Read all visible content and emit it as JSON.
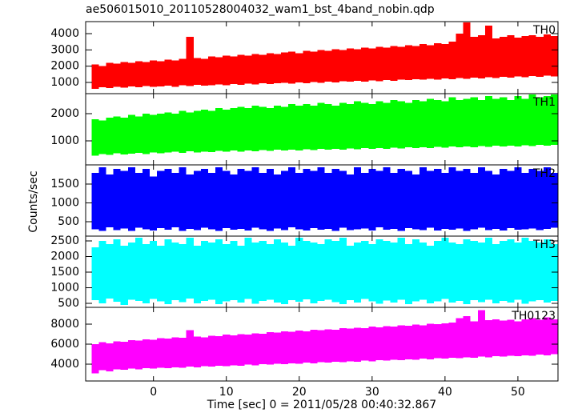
{
  "chart_data": {
    "type": "stacked-range",
    "title": "ae506015010_20110528004032_wam1_bst_4band_nobin.qdp",
    "xlabel": "Time [sec] 0 = 2011/05/28 00:40:32.867",
    "ylabel": "Counts/sec",
    "xlim": [
      -9.3,
      55.5
    ],
    "xticks": [
      0,
      10,
      20,
      30,
      40,
      50
    ],
    "x": [
      -8,
      -7,
      -6,
      -5,
      -4,
      -3,
      -2,
      -1,
      0,
      1,
      2,
      3,
      4,
      5,
      6,
      7,
      8,
      9,
      10,
      11,
      12,
      13,
      14,
      15,
      16,
      17,
      18,
      19,
      20,
      21,
      22,
      23,
      24,
      25,
      26,
      27,
      28,
      29,
      30,
      31,
      32,
      33,
      34,
      35,
      36,
      37,
      38,
      39,
      40,
      41,
      42,
      43,
      44,
      45,
      46,
      47,
      48,
      49,
      50,
      51,
      52,
      53,
      54,
      55
    ],
    "panels": [
      {
        "label": "TH0",
        "color": "#ff0000",
        "ylim": [
          310,
          4740
        ],
        "yticks": [
          1000,
          2000,
          3000,
          4000
        ],
        "low": [
          600,
          700,
          650,
          720,
          680,
          750,
          700,
          780,
          720,
          760,
          800,
          740,
          820,
          780,
          850,
          800,
          830,
          880,
          820,
          900,
          860,
          920,
          880,
          950,
          900,
          940,
          980,
          920,
          1000,
          960,
          1020,
          980,
          1050,
          1000,
          1080,
          1040,
          1100,
          1060,
          1120,
          1080,
          1150,
          1100,
          1180,
          1140,
          1200,
          1160,
          1220,
          1180,
          1250,
          1200,
          1280,
          1230,
          1300,
          1250,
          1320,
          1280,
          1350,
          1300,
          1380,
          1320,
          1400,
          1350,
          1420,
          1380
        ],
        "high": [
          2100,
          2000,
          2200,
          2150,
          2250,
          2200,
          2300,
          2250,
          2350,
          2300,
          2400,
          2350,
          2450,
          3800,
          2500,
          2450,
          2600,
          2550,
          2650,
          2600,
          2700,
          2650,
          2750,
          2700,
          2800,
          2750,
          2850,
          2900,
          2800,
          2950,
          2900,
          3000,
          2950,
          3050,
          3000,
          3100,
          3050,
          3150,
          3100,
          3200,
          3150,
          3250,
          3200,
          3300,
          3250,
          3350,
          3300,
          3400,
          3350,
          3500,
          4000,
          4700,
          3800,
          3900,
          4500,
          3700,
          3800,
          3900,
          3750,
          3850,
          3900,
          3800,
          3950,
          3850
        ]
      },
      {
        "label": "TH1",
        "color": "#00ff00",
        "ylim": [
          118,
          2735
        ],
        "yticks": [
          1000,
          2000
        ],
        "low": [
          450,
          520,
          480,
          550,
          500,
          530,
          560,
          520,
          580,
          540,
          570,
          600,
          560,
          620,
          580,
          610,
          590,
          630,
          600,
          640,
          610,
          650,
          620,
          660,
          630,
          670,
          640,
          680,
          650,
          690,
          660,
          700,
          670,
          710,
          680,
          720,
          690,
          730,
          700,
          740,
          710,
          750,
          720,
          760,
          730,
          770,
          740,
          780,
          750,
          790,
          760,
          800,
          770,
          810,
          780,
          820,
          790,
          830,
          800,
          840,
          810,
          850,
          820,
          860
        ],
        "high": [
          1800,
          1750,
          1850,
          1900,
          1850,
          1950,
          1900,
          2000,
          1950,
          2000,
          2050,
          2000,
          2100,
          2050,
          2100,
          2150,
          2100,
          2200,
          2150,
          2200,
          2250,
          2200,
          2300,
          2250,
          2200,
          2300,
          2250,
          2350,
          2300,
          2350,
          2300,
          2400,
          2350,
          2300,
          2400,
          2350,
          2450,
          2400,
          2350,
          2450,
          2400,
          2500,
          2450,
          2400,
          2500,
          2450,
          2550,
          2500,
          2450,
          2600,
          2500,
          2550,
          2600,
          2500,
          2650,
          2550,
          2600,
          2500,
          2650,
          2550,
          2700,
          2600,
          2650,
          2700
        ]
      },
      {
        "label": "TH2",
        "color": "#0000ff",
        "ylim": [
          117,
          2010
        ],
        "yticks": [
          500,
          1000,
          1500
        ],
        "low": [
          300,
          250,
          350,
          280,
          320,
          260,
          340,
          300,
          270,
          330,
          290,
          350,
          260,
          310,
          280,
          340,
          300,
          250,
          330,
          290,
          310,
          270,
          340,
          300,
          260,
          320,
          280,
          350,
          300,
          270,
          330,
          290,
          310,
          260,
          340,
          280,
          300,
          320,
          270,
          350,
          290,
          310,
          260,
          330,
          300,
          280,
          340,
          270,
          310,
          290,
          320,
          260,
          300,
          340,
          280,
          310,
          270,
          330,
          290,
          300,
          320,
          280,
          310,
          340
        ],
        "high": [
          1800,
          1950,
          1750,
          1900,
          1850,
          1950,
          1800,
          1900,
          1700,
          1850,
          1900,
          1800,
          1950,
          1750,
          1850,
          1900,
          1800,
          1950,
          1850,
          1750,
          1900,
          1850,
          1950,
          1800,
          1900,
          1750,
          1850,
          1950,
          1800,
          1900,
          1850,
          1950,
          1800,
          1900,
          1850,
          1750,
          1950,
          1800,
          1900,
          1850,
          1950,
          1800,
          1900,
          1850,
          1750,
          1950,
          1850,
          1900,
          1800,
          1950,
          1850,
          1900,
          1800,
          1950,
          1850,
          1750,
          1900,
          1850,
          1950,
          1800,
          1900,
          1850,
          1950,
          1800
        ]
      },
      {
        "label": "TH3",
        "color": "#00ffff",
        "ylim": [
          372,
          2654
        ],
        "yticks": [
          500,
          1000,
          1500,
          2000,
          2500
        ],
        "low": [
          600,
          500,
          650,
          550,
          450,
          620,
          580,
          500,
          640,
          560,
          480,
          600,
          540,
          650,
          500,
          580,
          620,
          470,
          560,
          600,
          520,
          640,
          490,
          580,
          610,
          530,
          470,
          600,
          550,
          630,
          500,
          580,
          620,
          540,
          470,
          600,
          520,
          640,
          560,
          490,
          590,
          530,
          620,
          480,
          570,
          610,
          500,
          560,
          640,
          520,
          580,
          470,
          600,
          540,
          620,
          500,
          580,
          530,
          610,
          490,
          560,
          600,
          520,
          580
        ],
        "high": [
          2300,
          2500,
          2400,
          2550,
          2350,
          2450,
          2600,
          2400,
          2500,
          2350,
          2550,
          2450,
          2400,
          2600,
          2350,
          2500,
          2450,
          2550,
          2400,
          2500,
          2350,
          2600,
          2450,
          2500,
          2400,
          2550,
          2450,
          2350,
          2600,
          2500,
          2450,
          2400,
          2550,
          2500,
          2600,
          2350,
          2450,
          2500,
          2400,
          2550,
          2500,
          2450,
          2600,
          2400,
          2550,
          2450,
          2350,
          2500,
          2600,
          2450,
          2400,
          2550,
          2500,
          2450,
          2600,
          2400,
          2500,
          2550,
          2450,
          2600,
          2500,
          2450,
          2550,
          2400
        ]
      },
      {
        "label": "TH0123",
        "color": "#ff00ff",
        "ylim": [
          2320,
          9680
        ],
        "yticks": [
          4000,
          6000,
          8000
        ],
        "low": [
          3100,
          3400,
          3300,
          3500,
          3450,
          3550,
          3500,
          3600,
          3550,
          3650,
          3600,
          3700,
          3650,
          3750,
          3700,
          3800,
          3750,
          3850,
          3800,
          3900,
          3850,
          3950,
          3900,
          4000,
          3950,
          4050,
          4000,
          4100,
          4050,
          4150,
          4100,
          4200,
          4150,
          4250,
          4200,
          4300,
          4250,
          4350,
          4300,
          4400,
          4350,
          4450,
          4400,
          4500,
          4450,
          4550,
          4500,
          4600,
          4550,
          4650,
          4600,
          4700,
          4650,
          4750,
          4700,
          4800,
          4750,
          4850,
          4800,
          4900,
          4850,
          4950,
          4900,
          5000
        ],
        "high": [
          6000,
          6200,
          6100,
          6300,
          6250,
          6400,
          6350,
          6500,
          6450,
          6600,
          6550,
          6700,
          6650,
          7400,
          6750,
          6700,
          6850,
          6800,
          6950,
          6900,
          7000,
          6950,
          7100,
          7050,
          7200,
          7150,
          7300,
          7250,
          7350,
          7300,
          7450,
          7400,
          7500,
          7450,
          7600,
          7550,
          7650,
          7600,
          7750,
          7700,
          7800,
          7750,
          7900,
          7850,
          7950,
          7900,
          8050,
          8000,
          8100,
          8150,
          8600,
          8800,
          8300,
          9400,
          8400,
          8500,
          8350,
          8450,
          8300,
          8500,
          8600,
          8450,
          8700,
          8500
        ]
      }
    ]
  }
}
